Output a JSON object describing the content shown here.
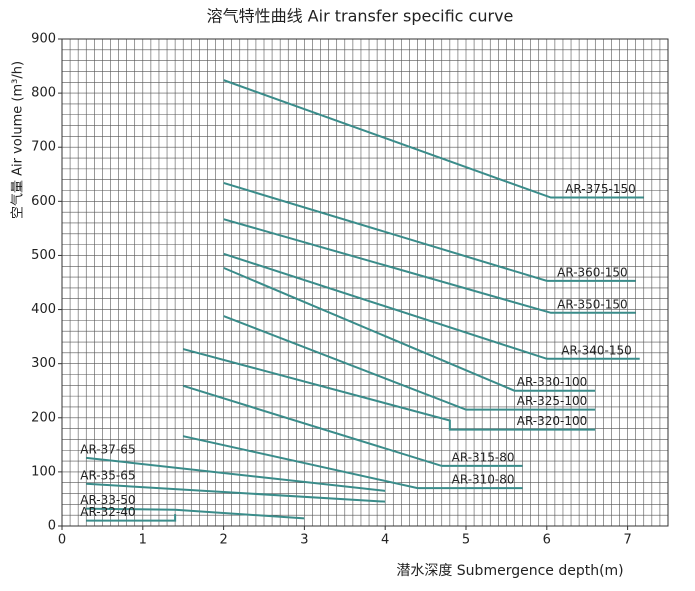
{
  "chart_data": {
    "type": "line",
    "title": "溶气特性曲线   Air transfer specific curve",
    "x_label": "潜水深度  Submergence depth(m)",
    "y_label": "空气量  Air volume (m³/h)",
    "xlim": [
      0,
      7.5
    ],
    "ylim": [
      0,
      900
    ],
    "xticks": [
      0,
      1,
      2,
      3,
      4,
      5,
      6,
      7
    ],
    "yticks": [
      0,
      100,
      200,
      300,
      400,
      500,
      600,
      700,
      800,
      900
    ],
    "grid": true,
    "series": [
      {
        "name": "AR-375-150",
        "color": "#3a8c8a",
        "x": [
          2,
          6.05,
          7.2
        ],
        "values": [
          824,
          607,
          607
        ]
      },
      {
        "name": "AR-360-150",
        "color": "#3a8c8a",
        "x": [
          2,
          6,
          7.1
        ],
        "values": [
          634,
          453,
          453
        ]
      },
      {
        "name": "AR-350-150",
        "color": "#3a8c8a",
        "x": [
          2,
          6.05,
          7.1
        ],
        "values": [
          567,
          394,
          394
        ]
      },
      {
        "name": "AR-340-150",
        "color": "#3a8c8a",
        "x": [
          2,
          6,
          7.15
        ],
        "values": [
          503,
          309,
          309
        ]
      },
      {
        "name": "AR-330-100",
        "color": "#3a8c8a",
        "x": [
          2,
          5.6,
          6.6
        ],
        "values": [
          477,
          250,
          250
        ]
      },
      {
        "name": "AR-325-100",
        "color": "#3a8c8a",
        "x": [
          2,
          5,
          6.6
        ],
        "values": [
          388,
          215,
          215
        ]
      },
      {
        "name": "AR-320-100",
        "color": "#3a8c8a",
        "x": [
          1.5,
          4.8,
          4.8,
          6.6
        ],
        "values": [
          327,
          195,
          178,
          178
        ]
      },
      {
        "name": "AR-315-80",
        "color": "#3a8c8a",
        "x": [
          1.5,
          4.7,
          5.7
        ],
        "values": [
          259,
          111,
          111
        ]
      },
      {
        "name": "AR-310-80",
        "color": "#3a8c8a",
        "x": [
          1.5,
          4.4,
          5.7
        ],
        "values": [
          166,
          70,
          70
        ]
      },
      {
        "name": "AR-37-65",
        "color": "#3a8c8a",
        "x": [
          0.3,
          4
        ],
        "values": [
          126,
          65
        ]
      },
      {
        "name": "AR-35-65",
        "color": "#3a8c8a",
        "x": [
          0.3,
          4
        ],
        "values": [
          78,
          45
        ]
      },
      {
        "name": "AR-33-50",
        "color": "#3a8c8a",
        "x": [
          0.3,
          1.4,
          3
        ],
        "values": [
          32,
          30,
          14
        ]
      },
      {
        "name": "AR-32-40",
        "color": "#3a8c8a",
        "x": [
          0.3,
          1.4,
          1.4
        ],
        "values": [
          10,
          10,
          22
        ]
      }
    ]
  }
}
